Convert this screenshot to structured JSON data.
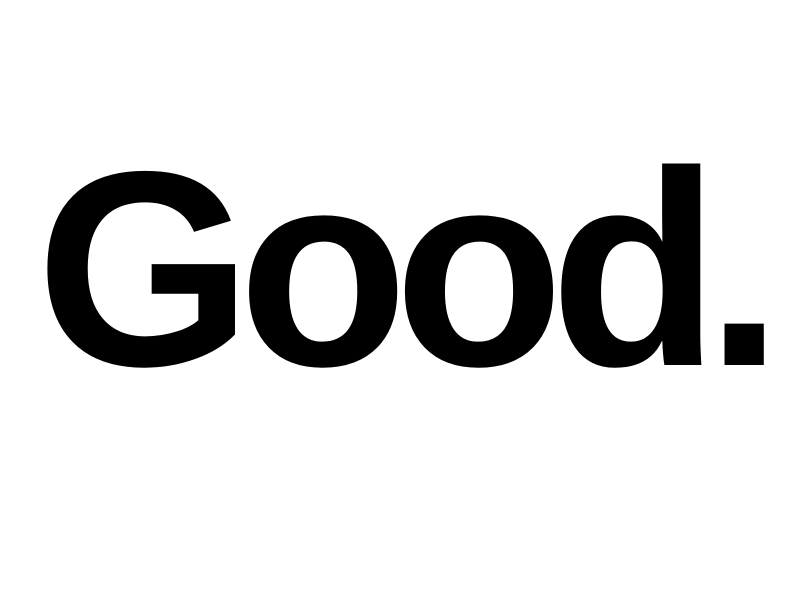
{
  "wordmark": {
    "text": "Good.",
    "color": "#000000"
  },
  "background_color": "#ffffff"
}
